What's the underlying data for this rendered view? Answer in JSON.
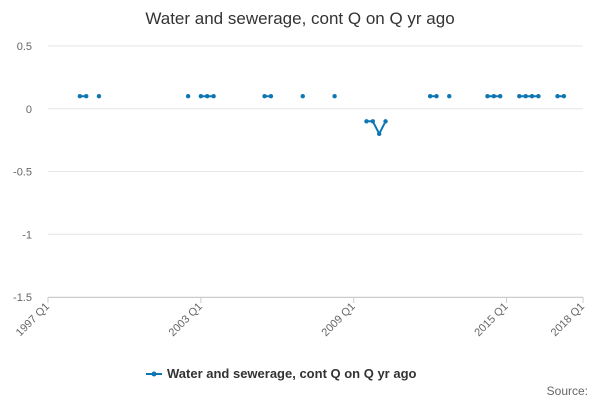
{
  "chart_data": {
    "type": "line",
    "title": "Water and sewerage, cont Q on Q yr ago",
    "xlabel": "",
    "ylabel": "",
    "x_ticks": [
      "1997 Q1",
      "2003 Q1",
      "2009 Q1",
      "2015 Q1",
      "2018 Q1"
    ],
    "y_ticks": [
      0.5,
      0,
      -0.5,
      -1,
      -1.5
    ],
    "y_tick_labels": [
      "0.5",
      "0",
      "-0.5",
      "-1",
      "-1.5"
    ],
    "xlim": [
      "1997 Q1",
      "2018 Q1"
    ],
    "ylim": [
      -1.5,
      0.5
    ],
    "grid": "horizontal",
    "legend_position": "bottom",
    "color": "#0e76b3",
    "series": [
      {
        "name": "Water and sewerage, cont Q on Q yr ago",
        "points": [
          {
            "x": "1998 Q2",
            "y": 0.1
          },
          {
            "x": "1998 Q3",
            "y": 0.1
          },
          {
            "x": "1999 Q1",
            "y": 0.1
          },
          {
            "x": "2002 Q3",
            "y": 0.1
          },
          {
            "x": "2003 Q1",
            "y": 0.1
          },
          {
            "x": "2003 Q2",
            "y": 0.1
          },
          {
            "x": "2003 Q3",
            "y": 0.1
          },
          {
            "x": "2005 Q3",
            "y": 0.1
          },
          {
            "x": "2005 Q4",
            "y": 0.1
          },
          {
            "x": "2007 Q1",
            "y": 0.1
          },
          {
            "x": "2008 Q2",
            "y": 0.1
          },
          {
            "x": "2009 Q3",
            "y": -0.1
          },
          {
            "x": "2009 Q4",
            "y": -0.1
          },
          {
            "x": "2010 Q1",
            "y": -0.2
          },
          {
            "x": "2010 Q2",
            "y": -0.1
          },
          {
            "x": "2012 Q1",
            "y": 0.1
          },
          {
            "x": "2012 Q2",
            "y": 0.1
          },
          {
            "x": "2012 Q4",
            "y": 0.1
          },
          {
            "x": "2014 Q2",
            "y": 0.1
          },
          {
            "x": "2014 Q3",
            "y": 0.1
          },
          {
            "x": "2014 Q4",
            "y": 0.1
          },
          {
            "x": "2015 Q3",
            "y": 0.1
          },
          {
            "x": "2015 Q4",
            "y": 0.1
          },
          {
            "x": "2016 Q1",
            "y": 0.1
          },
          {
            "x": "2016 Q2",
            "y": 0.1
          },
          {
            "x": "2017 Q1",
            "y": 0.1
          },
          {
            "x": "2017 Q2",
            "y": 0.1
          }
        ]
      }
    ]
  },
  "source_label": "Source:"
}
